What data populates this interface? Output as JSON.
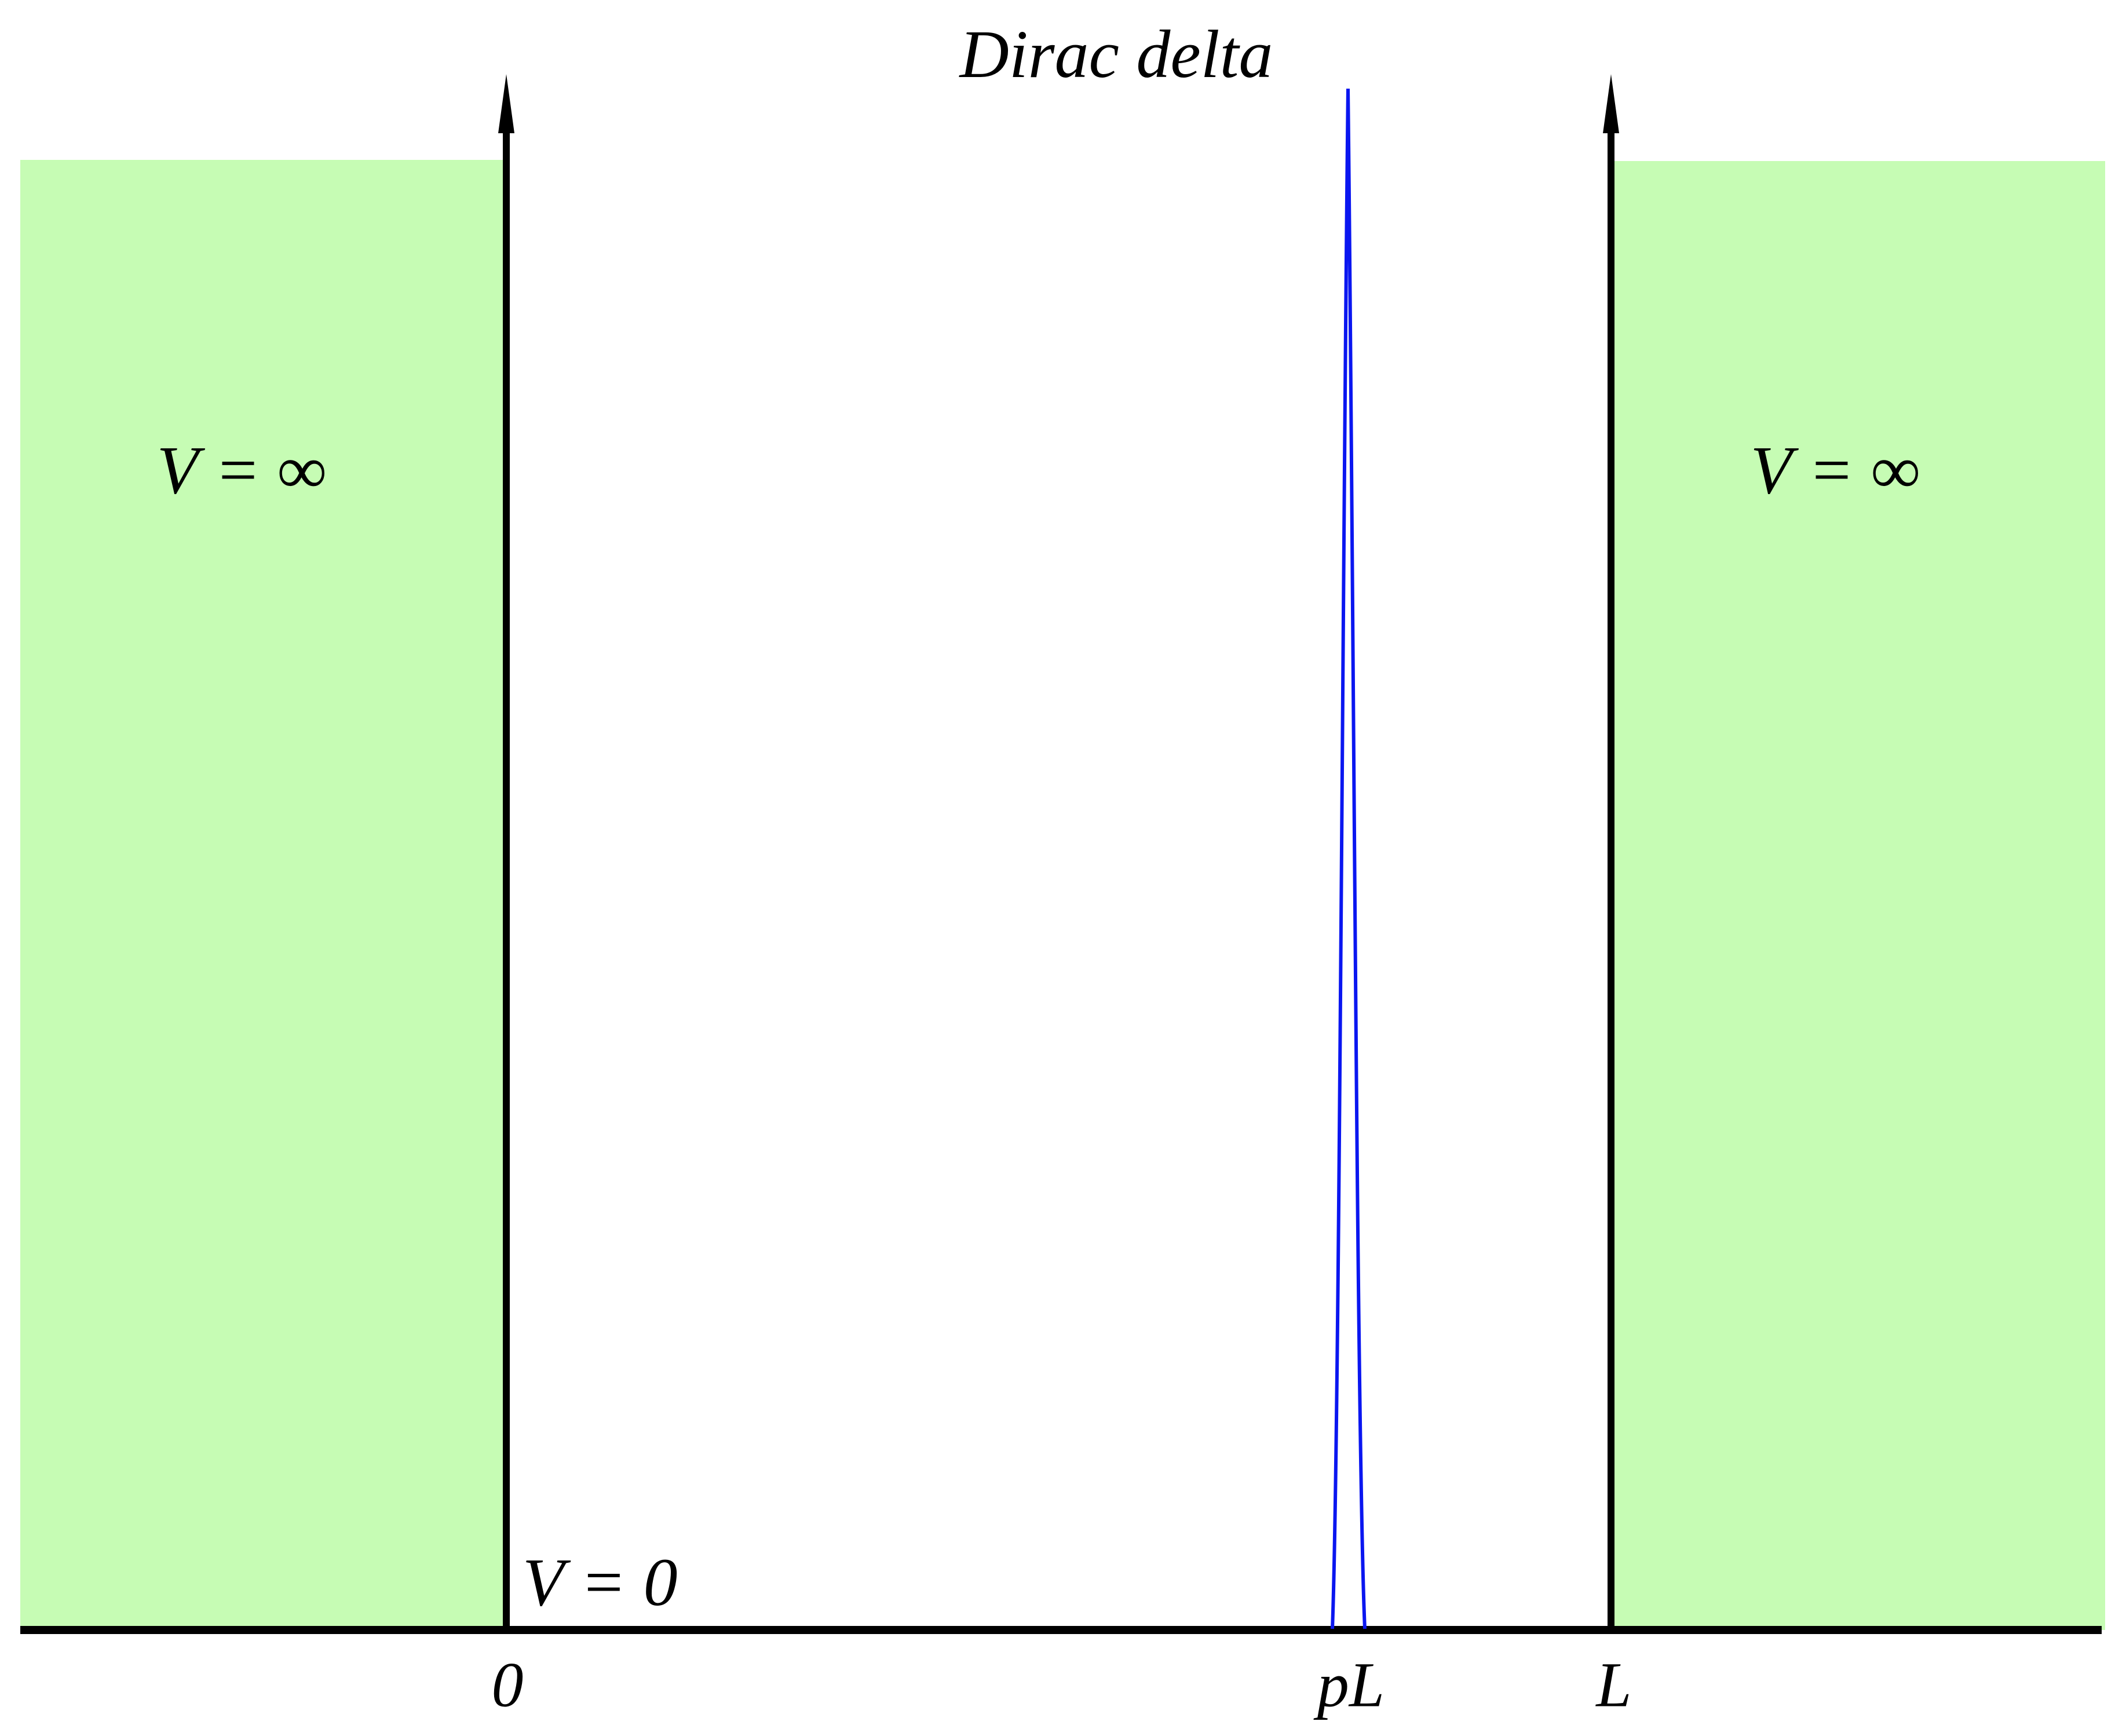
{
  "title": "Dirac delta",
  "regions": {
    "left": "V = ∞",
    "right": "V = ∞",
    "well": "V = 0"
  },
  "axis_labels": [
    "0",
    "pL",
    "L"
  ]
}
